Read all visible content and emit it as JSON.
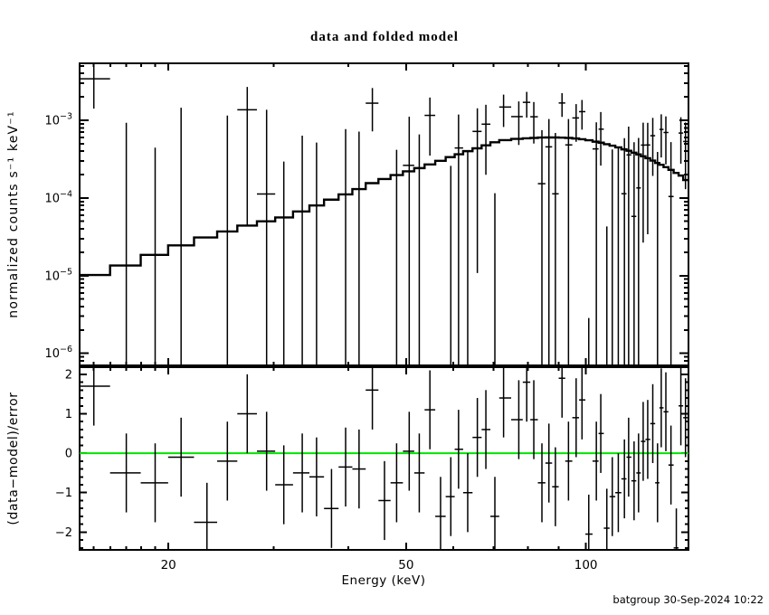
{
  "title": "data and folded model",
  "footer": "batgroup 30-Sep-2024 10:22",
  "colors": {
    "foreground": "#000000",
    "background": "#ffffff",
    "zero_line": "#00e500"
  },
  "chart_data": {
    "type": "scatter",
    "title": "data and folded model",
    "xlabel": "Energy (keV)",
    "x_scale": "log",
    "x_range": [
      14.2,
      148.5
    ],
    "x_ticks_labeled": [
      "20",
      "50",
      "100"
    ],
    "x_ticks_labeled_values": [
      20,
      50,
      100
    ],
    "x_ticks_minor": [
      15,
      16,
      17,
      18,
      19,
      30,
      40,
      60,
      70,
      80,
      90
    ],
    "legend": "none",
    "grid": false,
    "panels": [
      {
        "name": "spectrum",
        "ylabel": "normalized counts s⁻¹ keV⁻¹",
        "y_scale": "log",
        "y_range": [
          7e-07,
          0.0054
        ],
        "y_tick_exponents": [
          -3,
          -4,
          -5,
          -6
        ],
        "series_model": "folded model (stepped line)",
        "series_data": "data with 1-sigma error bars"
      },
      {
        "name": "residuals",
        "ylabel": "(data−model)/error",
        "y_scale": "linear",
        "y_range": [
          -2.45,
          2.18
        ],
        "y_ticks_labeled": [
          -2,
          -1,
          0,
          1,
          2
        ],
        "y_tick_minor_step": 0.2,
        "residual_error_bar": 1.0,
        "zero_line_color": "#00e500"
      }
    ],
    "bins_format": [
      "energy_keV",
      "model_counts",
      "residual_sigma",
      "error_counts"
    ],
    "bins": [
      [
        15.0,
        1.02e-05,
        1.7,
        0.002
      ],
      [
        17.0,
        1.35e-05,
        -0.5,
        0.00183
      ],
      [
        19.0,
        1.85e-05,
        -0.75,
        0.0017
      ],
      [
        21.0,
        2.45e-05,
        -0.1,
        0.00158
      ],
      [
        23.2,
        3.1e-05,
        -1.75,
        0.00147
      ],
      [
        25.1,
        3.7e-05,
        -0.2,
        0.00139
      ],
      [
        27.1,
        4.4e-05,
        1.0,
        0.00132
      ],
      [
        29.2,
        5e-05,
        0.05,
        0.00125
      ],
      [
        31.2,
        5.6e-05,
        -0.8,
        0.00119
      ],
      [
        33.5,
        6.7e-05,
        -0.5,
        0.00113
      ],
      [
        35.4,
        8e-05,
        -0.6,
        0.00109
      ],
      [
        37.5,
        9.5e-05,
        -1.4,
        0.00105
      ],
      [
        39.6,
        0.000111,
        -0.35,
        0.00101
      ],
      [
        41.7,
        0.00013,
        -0.4,
        0.000974
      ],
      [
        43.9,
        0.000155,
        1.6,
        0.000939
      ],
      [
        46.0,
        0.000175,
        -1.2,
        0.000909
      ],
      [
        48.2,
        0.000197,
        -0.75,
        0.00088
      ],
      [
        50.6,
        0.00022,
        0.05,
        0.00085
      ],
      [
        52.6,
        0.000242,
        -0.5,
        0.000828
      ],
      [
        54.8,
        0.00027,
        1.1,
        0.000804
      ],
      [
        57.1,
        0.0003,
        -1.6,
        0.000781
      ],
      [
        59.4,
        0.000335,
        -1.1,
        0.00076
      ],
      [
        61.2,
        0.000365,
        0.1,
        0.000744
      ],
      [
        63.4,
        0.0004,
        -1.0,
        0.000726
      ],
      [
        65.8,
        0.000435,
        0.4,
        0.000707
      ],
      [
        68.0,
        0.000475,
        0.6,
        0.000691
      ],
      [
        70.4,
        0.00052,
        -1.6,
        0.000675
      ],
      [
        72.8,
        0.000555,
        1.4,
        0.000659
      ],
      [
        77.2,
        0.000575,
        0.85,
        0.000633
      ],
      [
        79.6,
        0.000585,
        1.8,
        0.000619
      ],
      [
        81.8,
        0.000592,
        0.85,
        0.000607
      ],
      [
        84.4,
        0.000598,
        -0.75,
        0.000594
      ],
      [
        86.7,
        0.0006,
        -0.25,
        0.000583
      ],
      [
        88.9,
        0.0006,
        -0.85,
        0.000573
      ],
      [
        91.2,
        0.000597,
        1.9,
        0.000563
      ],
      [
        93.5,
        0.000592,
        -0.2,
        0.000553
      ],
      [
        96.3,
        0.000582,
        0.9,
        0.000542
      ],
      [
        98.5,
        0.00057,
        1.35,
        0.000533
      ],
      [
        101.1,
        0.000552,
        -2.05,
        0.000523
      ],
      [
        104.1,
        0.00053,
        -0.2,
        0.000513
      ],
      [
        105.9,
        0.000514,
        0.5,
        0.000507
      ],
      [
        108.4,
        0.000492,
        -1.9,
        0.000499
      ],
      [
        110.7,
        0.00047,
        -1.1,
        0.000491
      ],
      [
        113.3,
        0.000447,
        -1.0,
        0.000483
      ],
      [
        116.0,
        0.000422,
        -0.65,
        0.000475
      ],
      [
        117.9,
        0.000405,
        -0.1,
        0.00047
      ],
      [
        120.4,
        0.000382,
        -0.7,
        0.000463
      ],
      [
        122.5,
        0.000363,
        -0.5,
        0.000457
      ],
      [
        124.7,
        0.000343,
        0.3,
        0.000452
      ],
      [
        126.9,
        0.000324,
        0.35,
        0.000446
      ],
      [
        129.4,
        0.000302,
        0.75,
        0.00044
      ],
      [
        131.8,
        0.000282,
        -0.75,
        0.000434
      ],
      [
        133.7,
        0.000267,
        1.15,
        0.00043
      ],
      [
        136.1,
        0.000249,
        1.05,
        0.000425
      ],
      [
        138.8,
        0.00023,
        -0.3,
        0.000419
      ],
      [
        141.7,
        0.00021,
        -2.4,
        0.000413
      ],
      [
        144.2,
        0.000194,
        1.2,
        0.000408
      ],
      [
        146.8,
        0.00017,
        0.9,
        0.000403
      ]
    ]
  }
}
